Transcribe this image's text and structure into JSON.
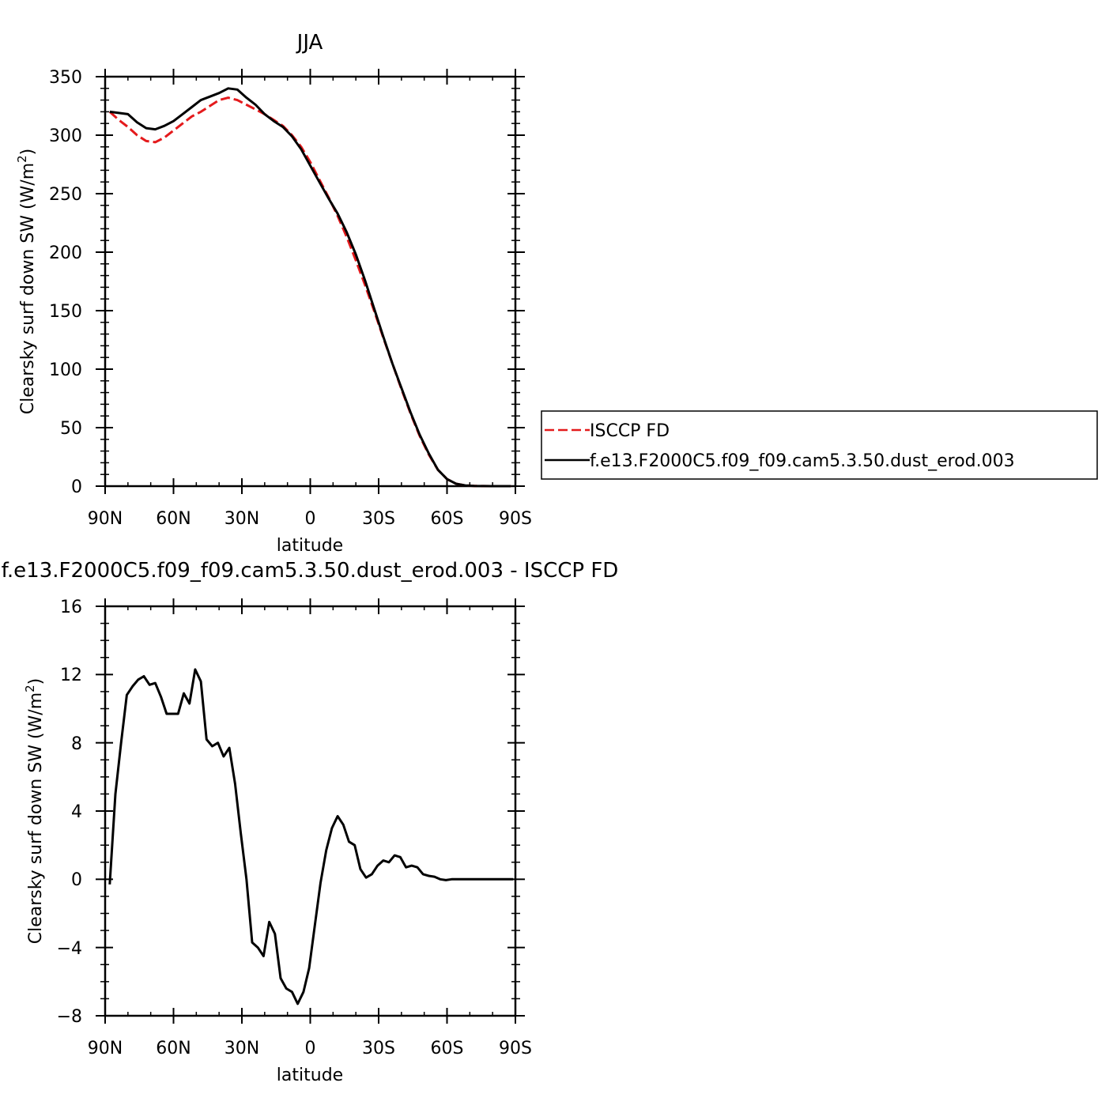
{
  "chart_data": [
    {
      "type": "line",
      "title": "JJA",
      "xlabel": "latitude",
      "ylabel": "Clearsky surf down SW (W/m²)",
      "ylabel_main": "Clearsky surf down SW (W/m",
      "ylabel_sup": "2",
      "ylabel_end": ")",
      "x_axis_reversed_latitude": true,
      "xlim": [
        90,
        -90
      ],
      "ylim": [
        0,
        350
      ],
      "xticks": [
        90,
        60,
        30,
        0,
        -30,
        -60,
        -90
      ],
      "xtick_labels": [
        "90N",
        "60N",
        "30N",
        "0",
        "30S",
        "60S",
        "90S"
      ],
      "yticks": [
        0,
        50,
        100,
        150,
        200,
        250,
        300,
        350
      ],
      "ytick_labels": [
        "0",
        "50",
        "100",
        "150",
        "200",
        "250",
        "300",
        "350"
      ],
      "grid": false,
      "legend_placement": "right",
      "series": [
        {
          "name": "ISCCP FD",
          "color": "#e41a1c",
          "dash": "dashed",
          "x": [
            88,
            84,
            80,
            76,
            72,
            68,
            64,
            60,
            56,
            52,
            48,
            44,
            40,
            36,
            32,
            28,
            24,
            20,
            16,
            12,
            8,
            4,
            0,
            -4,
            -8,
            -12,
            -16,
            -20,
            -24,
            -28,
            -32,
            -36,
            -40,
            -44,
            -48,
            -52,
            -56,
            -60,
            -64,
            -68,
            -72,
            -76,
            -80,
            -84,
            -88
          ],
          "y": [
            320,
            313,
            307,
            300,
            295,
            294,
            298,
            304,
            310,
            316,
            320,
            325,
            330,
            332,
            330,
            326,
            322,
            318,
            313,
            308,
            300,
            290,
            277,
            262,
            247,
            231,
            213,
            193,
            172,
            150,
            127,
            105,
            83,
            62,
            43,
            27,
            14,
            6,
            2,
            0.6,
            0.2,
            0.1,
            0,
            0,
            0
          ]
        },
        {
          "name": "f.e13.F2000C5.f09_f09.cam5.3.50.dust_erod.003",
          "color": "#000000",
          "dash": "solid",
          "x": [
            88,
            84,
            80,
            76,
            72,
            68,
            64,
            60,
            56,
            52,
            48,
            44,
            40,
            36,
            32,
            28,
            24,
            20,
            16,
            12,
            8,
            4,
            0,
            -4,
            -8,
            -12,
            -16,
            -20,
            -24,
            -28,
            -32,
            -36,
            -40,
            -44,
            -48,
            -52,
            -56,
            -60,
            -64,
            -68,
            -72,
            -76,
            -80,
            -84,
            -88
          ],
          "y": [
            320,
            319,
            318,
            311,
            306,
            305,
            308,
            312,
            318,
            324,
            330,
            333,
            336,
            340,
            339,
            332,
            326,
            318,
            312,
            307,
            299,
            288,
            274,
            260,
            246,
            233,
            217,
            198,
            176,
            152,
            128,
            105,
            84,
            63,
            44,
            28,
            14,
            6,
            2,
            0.6,
            0.2,
            0.1,
            0,
            0,
            0
          ]
        }
      ]
    },
    {
      "type": "line",
      "title": "f.e13.F2000C5.f09_f09.cam5.3.50.dust_erod.003 - ISCCP FD",
      "xlabel": "latitude",
      "ylabel": "Clearsky surf down SW (W/m²)",
      "ylabel_main": "Clearsky surf down SW (W/m",
      "ylabel_sup": "2",
      "ylabel_end": ")",
      "xlim": [
        90,
        -90
      ],
      "ylim": [
        -8,
        16
      ],
      "xticks": [
        90,
        60,
        30,
        0,
        -30,
        -60,
        -90
      ],
      "xtick_labels": [
        "90N",
        "60N",
        "30N",
        "0",
        "30S",
        "60S",
        "90S"
      ],
      "yticks": [
        -8,
        -4,
        0,
        4,
        8,
        12,
        16
      ],
      "ytick_labels": [
        "−8",
        "−4",
        "0",
        "4",
        "8",
        "12",
        "16"
      ],
      "grid": false,
      "series": [
        {
          "color": "#000000",
          "dash": "solid",
          "x": [
            88,
            85.5,
            83,
            80.5,
            78,
            75.5,
            73,
            70.5,
            68,
            65.5,
            63,
            60.5,
            58,
            55.5,
            53,
            50.5,
            48,
            45.5,
            43,
            40.5,
            38,
            35.5,
            33,
            30.5,
            28,
            25.5,
            23,
            20.5,
            18,
            15.5,
            13,
            10.5,
            8,
            5.5,
            3,
            0.5,
            -2,
            -4.5,
            -7,
            -9.5,
            -12,
            -14.5,
            -17,
            -19.5,
            -22,
            -24.5,
            -27,
            -29.5,
            -32,
            -34.5,
            -37,
            -39.5,
            -42,
            -44.5,
            -47,
            -49.5,
            -52,
            -54.5,
            -57,
            -59.5,
            -62,
            -64.5,
            -67,
            -69.5,
            -72,
            -74.5,
            -77,
            -79.5,
            -82,
            -84.5,
            -87,
            -89
          ],
          "y": [
            -0.3,
            5.0,
            8.0,
            10.8,
            11.3,
            11.7,
            11.9,
            11.4,
            11.5,
            10.7,
            9.7,
            9.7,
            9.7,
            10.9,
            10.3,
            12.3,
            11.6,
            8.2,
            7.8,
            8.0,
            7.2,
            7.7,
            5.6,
            2.7,
            0.0,
            -3.7,
            -4.0,
            -4.5,
            -2.5,
            -3.2,
            -5.8,
            -6.4,
            -6.6,
            -7.3,
            -6.6,
            -5.2,
            -2.7,
            -0.2,
            1.7,
            3.0,
            3.7,
            3.2,
            2.2,
            2.0,
            0.6,
            0.1,
            0.3,
            0.8,
            1.1,
            1.0,
            1.4,
            1.3,
            0.7,
            0.8,
            0.7,
            0.3,
            0.2,
            0.15,
            0.0,
            -0.05,
            0.0,
            0.0,
            0.0,
            0.0,
            0.0,
            0.0,
            0.0,
            0.0,
            0.0,
            0.0,
            0.0,
            0.0
          ]
        }
      ]
    }
  ]
}
